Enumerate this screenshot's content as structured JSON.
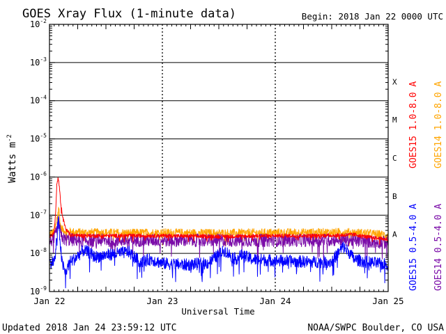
{
  "chart_data": {
    "type": "line",
    "title": "GOES Xray Flux (1-minute data)",
    "begin_label": "Begin:  2018 Jan 22 0000 UTC",
    "xlabel": "Universal Time",
    "ylabel": "Watts m",
    "ylabel_superscript": "-2",
    "y_scale": "log",
    "ylim": [
      1e-09,
      0.01
    ],
    "y_ticks": [
      {
        "value": 0.01,
        "base": "10",
        "exp": "-2"
      },
      {
        "value": 0.001,
        "base": "10",
        "exp": "-3"
      },
      {
        "value": 0.0001,
        "base": "10",
        "exp": "-4"
      },
      {
        "value": 1e-05,
        "base": "10",
        "exp": "-5"
      },
      {
        "value": 1e-06,
        "base": "10",
        "exp": "-6"
      },
      {
        "value": 1e-07,
        "base": "10",
        "exp": "-7"
      },
      {
        "value": 1e-08,
        "base": "10",
        "exp": "-8"
      },
      {
        "value": 1e-09,
        "base": "10",
        "exp": "-9"
      }
    ],
    "x_unit": "days since Jan 22 0000 UTC",
    "xlim": [
      0,
      3
    ],
    "x_ticks": [
      {
        "value": 0,
        "label": "Jan 22"
      },
      {
        "value": 1,
        "label": "Jan 23"
      },
      {
        "value": 2,
        "label": "Jan 24"
      },
      {
        "value": 3,
        "label": "Jan 25"
      }
    ],
    "flare_classes": [
      {
        "label": "X",
        "low": 0.0001,
        "high": 0.001
      },
      {
        "label": "M",
        "low": 1e-05,
        "high": 0.0001
      },
      {
        "label": "C",
        "low": 1e-06,
        "high": 1e-05
      },
      {
        "label": "B",
        "low": 1e-07,
        "high": 1e-06
      },
      {
        "label": "A",
        "low": 1e-08,
        "high": 1e-07
      }
    ],
    "series": [
      {
        "name": "GOES14 1.0-8.0 A",
        "color": "#ffa500",
        "noise": 0.11,
        "x": [
          0,
          0.02,
          0.04,
          0.06,
          0.08,
          0.1,
          0.15,
          0.3,
          0.5,
          0.7,
          1.0,
          1.3,
          1.6,
          2.0,
          2.3,
          2.6,
          2.8,
          3.0
        ],
        "y": [
          3.3e-08,
          3.5e-08,
          3.6e-08,
          6e-08,
          1.8e-07,
          4.5e-08,
          3.7e-08,
          3.5e-08,
          3.5e-08,
          3.4e-08,
          3.5e-08,
          3.4e-08,
          3.4e-08,
          3.5e-08,
          3.5e-08,
          3.6e-08,
          3.4e-08,
          3e-08
        ]
      },
      {
        "name": "GOES14 0.5-4.0 A",
        "color": "#7a0ba8",
        "noise": 0.17,
        "x": [
          0,
          0.02,
          0.04,
          0.06,
          0.08,
          0.1,
          0.13,
          0.3,
          0.6,
          1.0,
          1.4,
          1.8,
          2.2,
          2.6,
          2.8,
          3.0
        ],
        "y": [
          2.1e-08,
          2.2e-08,
          2.3e-08,
          3.5e-08,
          7e-08,
          3e-08,
          2.3e-08,
          2.2e-08,
          2.2e-08,
          2.2e-08,
          2.2e-08,
          2.2e-08,
          2.2e-08,
          2.3e-08,
          2.1e-08,
          1.9e-08
        ]
      },
      {
        "name": "GOES15 1.0-8.0 A",
        "color": "#ff0000",
        "noise": 0.05,
        "x": [
          0,
          0.02,
          0.04,
          0.055,
          0.065,
          0.075,
          0.085,
          0.1,
          0.12,
          0.15,
          0.2,
          0.3,
          0.5,
          0.8,
          1.0,
          1.3,
          1.6,
          2.0,
          2.3,
          2.6,
          2.7,
          2.85,
          3.0
        ],
        "y": [
          2.8e-08,
          2.9e-08,
          3.5e-08,
          1.2e-07,
          6e-07,
          9.5e-07,
          6.5e-07,
          2e-07,
          8e-08,
          4e-08,
          3e-08,
          2.9e-08,
          2.9e-08,
          2.9e-08,
          2.9e-08,
          2.8e-08,
          2.8e-08,
          2.9e-08,
          2.9e-08,
          3e-08,
          3.1e-08,
          2.6e-08,
          2.3e-08
        ]
      },
      {
        "name": "GOES15 0.5-4.0 A",
        "color": "#0000ff",
        "noise": 0.16,
        "x": [
          0,
          0.03,
          0.05,
          0.065,
          0.08,
          0.095,
          0.11,
          0.14,
          0.18,
          0.22,
          0.3,
          0.35,
          0.4,
          0.5,
          0.7,
          0.8,
          0.9,
          1.0,
          1.2,
          1.4,
          1.55,
          1.6,
          1.65,
          1.7,
          1.8,
          2.0,
          2.3,
          2.5,
          2.6,
          2.65,
          2.7,
          2.8,
          3.0
        ],
        "y": [
          6e-09,
          6e-09,
          7e-09,
          3e-08,
          7e-08,
          2e-08,
          6e-09,
          3e-09,
          6e-09,
          7e-09,
          1.2e-08,
          1.05e-08,
          8e-09,
          9e-09,
          1.1e-08,
          6e-09,
          7e-09,
          5.5e-09,
          5e-09,
          5.5e-09,
          1.2e-08,
          9e-09,
          7e-09,
          9e-09,
          7e-09,
          6.5e-09,
          6e-09,
          6e-09,
          1.5e-08,
          1.1e-08,
          7e-09,
          6e-09,
          5e-09
        ]
      }
    ]
  },
  "footer": {
    "updated": "Updated 2018 Jan 24 23:59:12 UTC",
    "credit": "NOAA/SWPC Boulder, CO USA"
  }
}
